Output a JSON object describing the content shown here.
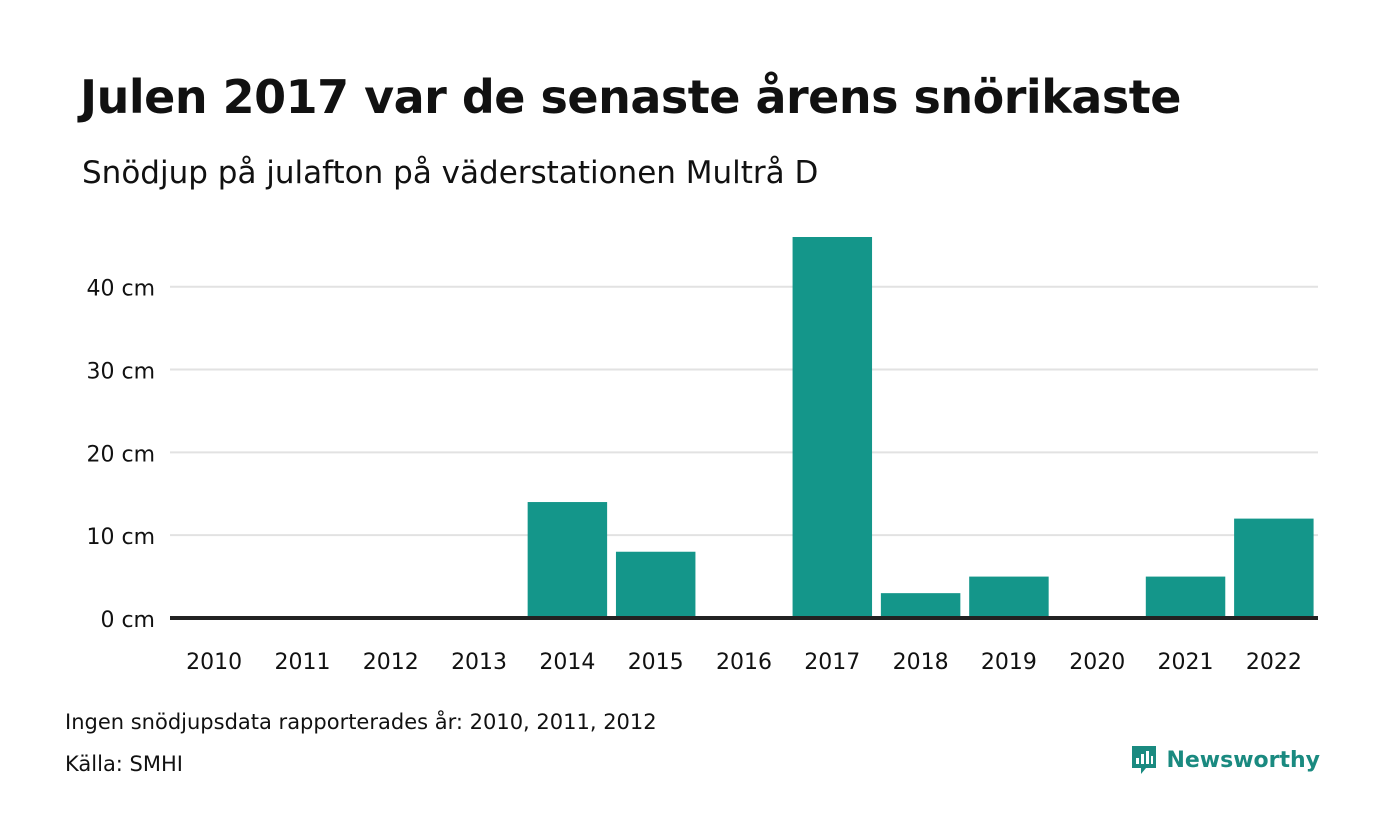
{
  "title": "Julen 2017 var de senaste årens snörikaste",
  "subtitle": "Snödjup på julafton på väderstationen Multrå D",
  "footer": {
    "missing_note": "Ingen snödjupsdata rapporterades år: 2010, 2011, 2012",
    "source": "Källa: SMHI",
    "brand": "Newsworthy"
  },
  "colors": {
    "bar": "#14968a",
    "grid": "#e2e2e2",
    "baseline": "#222222",
    "brand": "#1a8a80"
  },
  "chart_data": {
    "type": "bar",
    "title": "Julen 2017 var de senaste årens snörikaste",
    "subtitle": "Snödjup på julafton på väderstationen Multrå D",
    "categories": [
      "2010",
      "2011",
      "2012",
      "2013",
      "2014",
      "2015",
      "2016",
      "2017",
      "2018",
      "2019",
      "2020",
      "2021",
      "2022"
    ],
    "values": [
      0,
      0,
      0,
      0,
      14,
      8,
      0,
      46,
      3,
      5,
      0,
      5,
      12
    ],
    "y_ticks": [
      0,
      10,
      20,
      30,
      40
    ],
    "y_tick_labels": [
      "0 cm",
      "10 cm",
      "20 cm",
      "30 cm",
      "40 cm"
    ],
    "ylim": [
      0,
      46
    ],
    "unit": "cm",
    "grid": true,
    "legend": "none"
  }
}
